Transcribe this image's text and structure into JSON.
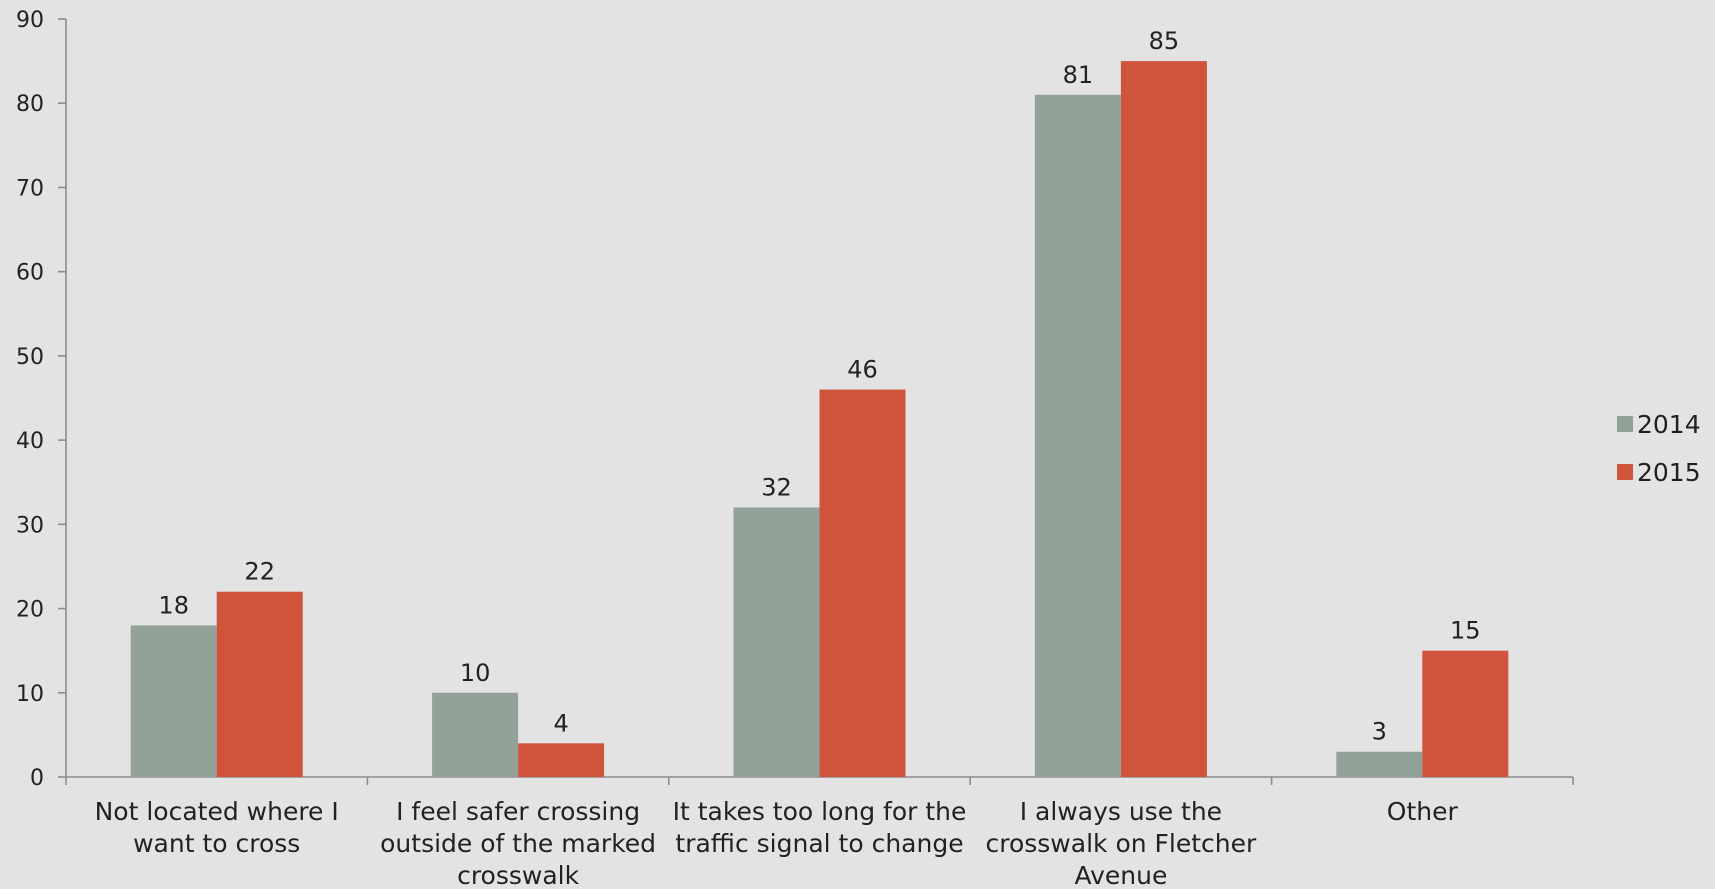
{
  "chart_data": {
    "type": "bar",
    "categories": [
      [
        "Not located where I",
        "want to cross"
      ],
      [
        "I feel safer crossing",
        "outside of the marked",
        "crosswalk"
      ],
      [
        "It takes too long for the",
        "traffic signal to change"
      ],
      [
        "I always use the",
        "crosswalk on Fletcher",
        "Avenue"
      ],
      [
        "Other"
      ]
    ],
    "series": [
      {
        "name": "2014",
        "color": "#93a299",
        "values": [
          18,
          10,
          32,
          81,
          3
        ]
      },
      {
        "name": "2015",
        "color": "#d0533c",
        "values": [
          22,
          4,
          46,
          85,
          15
        ]
      }
    ],
    "ylim": [
      0,
      90
    ],
    "yticks": [
      0,
      10,
      20,
      30,
      40,
      50,
      60,
      70,
      80,
      90
    ],
    "legend_position": "right",
    "grid": false
  }
}
